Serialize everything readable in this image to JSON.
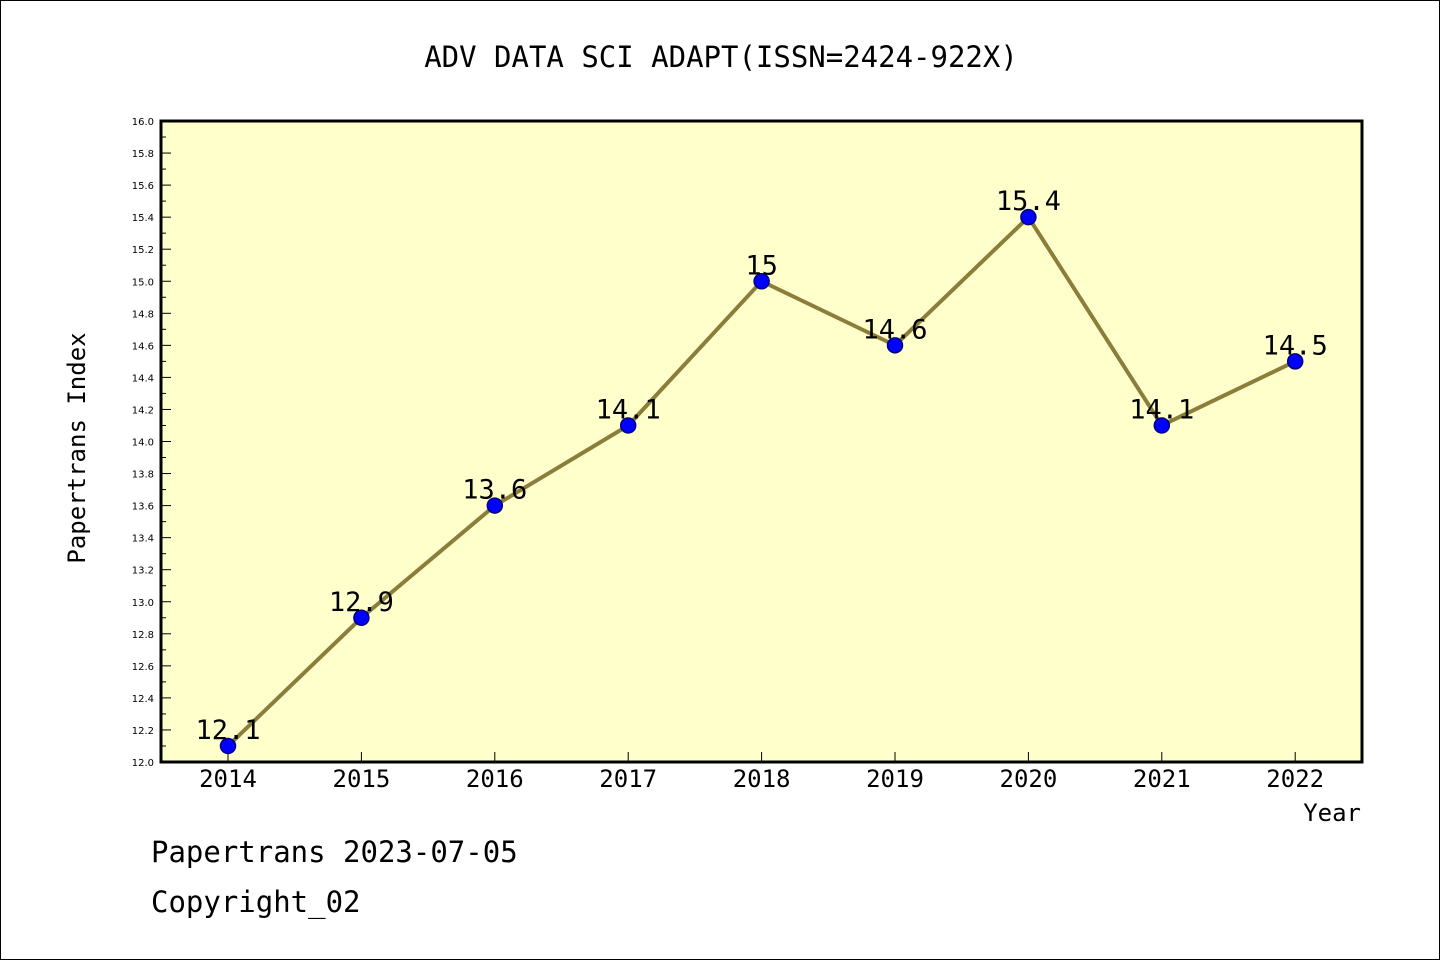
{
  "chart_data": {
    "type": "line",
    "title": "ADV DATA SCI ADAPT(ISSN=2424-922X)",
    "xlabel": "Year",
    "ylabel": "Papertrans Index",
    "categories": [
      "2014",
      "2015",
      "2016",
      "2017",
      "2018",
      "2019",
      "2020",
      "2021",
      "2022"
    ],
    "series": [
      {
        "values": [
          12.1,
          12.9,
          13.6,
          14.1,
          15,
          14.6,
          15.4,
          14.1,
          14.5
        ],
        "data_labels": [
          "12.1",
          "12.9",
          "13.6",
          "14.1",
          "15",
          "14.6",
          "15.4",
          "14.1",
          "14.5"
        ]
      }
    ],
    "ylim": [
      12.0,
      16.0
    ],
    "yticks": [
      "12.0",
      "12.2",
      "12.4",
      "12.6",
      "12.8",
      "13.0",
      "13.2",
      "13.4",
      "13.6",
      "13.8",
      "14.0",
      "14.2",
      "14.4",
      "14.6",
      "14.8",
      "15.0",
      "15.2",
      "15.4",
      "15.6",
      "15.8",
      "16.0"
    ],
    "grid": false,
    "legend": "none",
    "colors": {
      "plot_background": "#ffffcc",
      "line": "#8b7d3a",
      "marker": "#0000ff",
      "marker_edge": "#000080"
    }
  },
  "footer": {
    "line1": "Papertrans 2023-07-05",
    "line2": "Copyright_02"
  }
}
